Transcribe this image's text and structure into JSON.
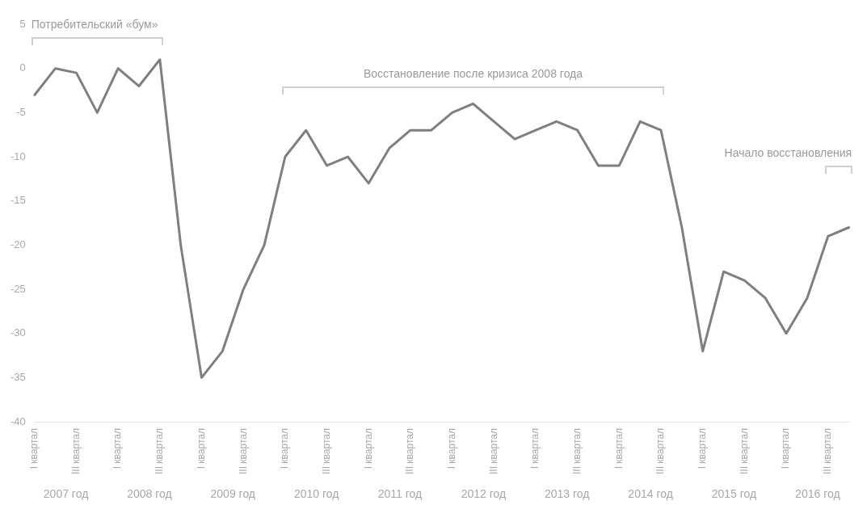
{
  "chart_data": {
    "type": "line",
    "categories": [
      "I квартал",
      null,
      "III квартал",
      null,
      "I квартал",
      null,
      "III квартал",
      null,
      "I квартал",
      null,
      "III квартал",
      null,
      "I квартал",
      null,
      "III квартал",
      null,
      "I квартал",
      null,
      "III квартал",
      null,
      "I квартал",
      null,
      "III квартал",
      null,
      "I квартал",
      null,
      "III квартал",
      null,
      "I квартал",
      null,
      "III квартал",
      null,
      "I квартал",
      null,
      "III квартал",
      null,
      "I квартал",
      null,
      "III квартал",
      null
    ],
    "series": [
      {
        "color": "#7f7f7f",
        "values": [
          -3,
          0,
          -0.5,
          -5,
          0,
          -2,
          1,
          -20,
          -35,
          -32,
          -25,
          -20,
          -10,
          -7,
          -11,
          -10,
          -13,
          -9,
          -7,
          -7,
          -5,
          -4,
          -6,
          -8,
          -7,
          -6,
          -7,
          -11,
          -11,
          -6,
          -7,
          -18,
          -32,
          -23,
          -24,
          -26,
          -30,
          -26,
          -19,
          -18
        ]
      }
    ],
    "ylim": [
      -40,
      5
    ],
    "yticks": [
      5,
      0,
      -5,
      -10,
      -15,
      -20,
      -25,
      -30,
      -35,
      -40
    ],
    "grid": false,
    "legend": false,
    "marker": "none",
    "line_style": "solid",
    "annotations": [
      "Потребительский «бум»",
      "Восстановление после кризиса 2008 года",
      "Начало восстановления",
      "2007 год",
      "2008 год",
      "2009 год",
      "2010 год",
      "2011 год",
      "2012 год",
      "2013 год",
      "2014 год",
      "2015 год",
      "2016 год"
    ]
  }
}
